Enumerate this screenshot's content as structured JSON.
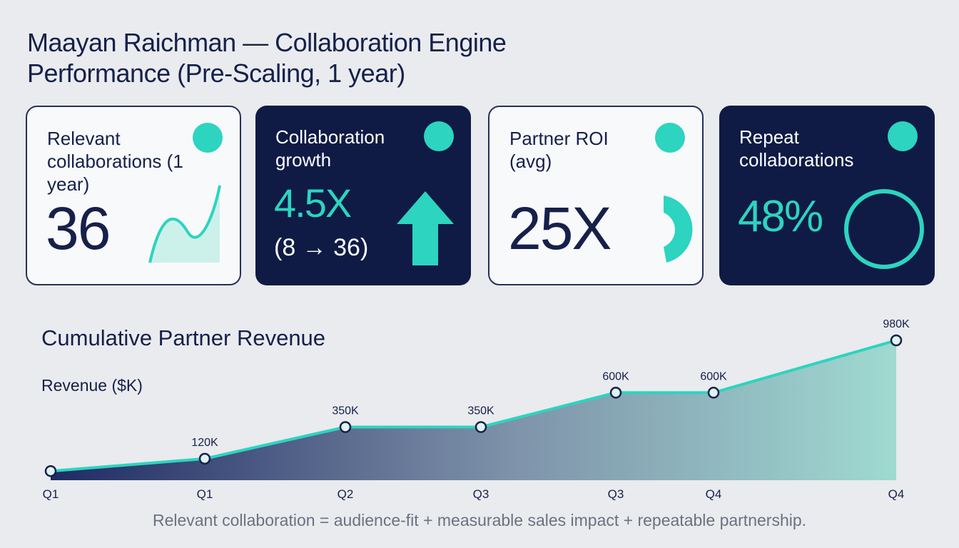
{
  "title": "Maayan Raichman — Collaboration Engine Performance (Pre-Scaling, 1 year)",
  "cards": [
    {
      "label": "Relevant collaborations (1 year)",
      "value": "36"
    },
    {
      "label": "Collaboration growth",
      "value": "4.5X",
      "detail": "(8 → 36)"
    },
    {
      "label": "Partner ROI (avg)",
      "value": "25X"
    },
    {
      "label": "Repeat collaborations",
      "value": "48%"
    }
  ],
  "chart_data": {
    "type": "area",
    "title": "Cumulative Partner Revenue",
    "y_label": "Revenue ($K)",
    "categories": [
      "Q1",
      "Q1",
      "Q2",
      "Q3",
      "Q3",
      "Q4",
      "Q4"
    ],
    "values": [
      30,
      120,
      350,
      350,
      600,
      600,
      980
    ],
    "value_labels": [
      null,
      "120K",
      "350K",
      "350K",
      "600K",
      "600K",
      "980K"
    ],
    "color": "#2dd4bf"
  },
  "footnote": "Relevant collaboration = audience-fit + measurable sales impact + repeatable partnership."
}
